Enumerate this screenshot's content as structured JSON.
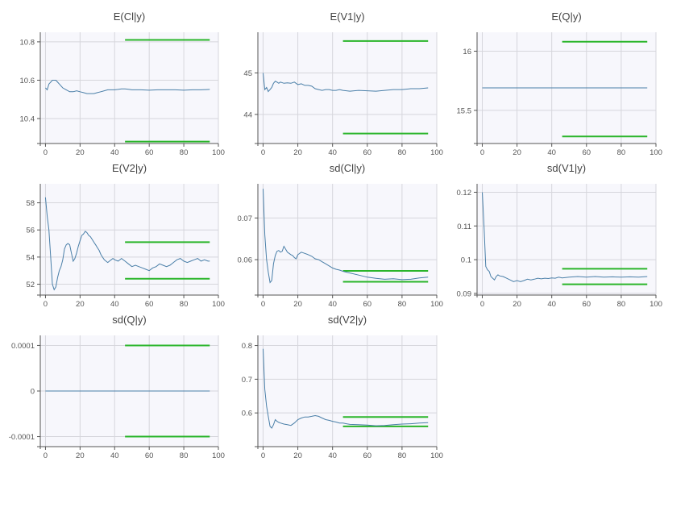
{
  "colors": {
    "trace": "#4a7fa8",
    "band": "#2ab52a",
    "plot_bg": "#f7f7fc",
    "grid": "#d6d6dc",
    "axis": "#555555"
  },
  "chart_data": [
    {
      "type": "line",
      "title": "E(Cl|y)",
      "xlim": [
        -3,
        100
      ],
      "ylim": [
        10.27,
        10.85
      ],
      "xticks": [
        0,
        20,
        40,
        60,
        80,
        100
      ],
      "xtick_labels": [
        "0",
        "20",
        "40",
        "60",
        "80",
        "100"
      ],
      "yticks": [
        10.4,
        10.6,
        10.8
      ],
      "ytick_labels": [
        "10.4",
        "10.6",
        "10.8"
      ],
      "bands": [
        {
          "x": [
            46,
            95
          ],
          "y": 10.81
        },
        {
          "x": [
            46,
            95
          ],
          "y": 10.28
        }
      ],
      "series": [
        {
          "x": [
            0,
            1,
            2,
            3,
            4,
            5,
            6,
            7,
            8,
            9,
            10,
            12,
            14,
            16,
            18,
            20,
            22,
            24,
            26,
            28,
            30,
            32,
            34,
            36,
            38,
            40,
            42,
            44,
            46,
            48,
            50,
            55,
            60,
            65,
            70,
            75,
            80,
            85,
            90,
            95
          ],
          "y": [
            10.56,
            10.55,
            10.58,
            10.59,
            10.6,
            10.6,
            10.6,
            10.59,
            10.58,
            10.57,
            10.56,
            10.55,
            10.54,
            10.54,
            10.545,
            10.54,
            10.535,
            10.53,
            10.53,
            10.53,
            10.535,
            10.54,
            10.545,
            10.55,
            10.55,
            10.55,
            10.552,
            10.555,
            10.555,
            10.553,
            10.55,
            10.55,
            10.548,
            10.55,
            10.55,
            10.55,
            10.548,
            10.55,
            10.55,
            10.552
          ]
        }
      ]
    },
    {
      "type": "line",
      "title": "E(V1|y)",
      "xlim": [
        -3,
        100
      ],
      "ylim": [
        43.3,
        45.98
      ],
      "xticks": [
        0,
        20,
        40,
        60,
        80,
        100
      ],
      "xtick_labels": [
        "0",
        "20",
        "40",
        "60",
        "80",
        "100"
      ],
      "yticks": [
        44,
        45
      ],
      "ytick_labels": [
        "44",
        "45"
      ],
      "bands": [
        {
          "x": [
            46,
            95
          ],
          "y": 45.77
        },
        {
          "x": [
            46,
            95
          ],
          "y": 43.54
        }
      ],
      "series": [
        {
          "x": [
            0,
            1,
            2,
            3,
            4,
            5,
            6,
            7,
            8,
            9,
            10,
            12,
            14,
            16,
            18,
            20,
            22,
            24,
            26,
            28,
            30,
            32,
            34,
            36,
            38,
            40,
            42,
            44,
            46,
            50,
            55,
            60,
            65,
            70,
            75,
            80,
            85,
            90,
            95
          ],
          "y": [
            45.0,
            44.6,
            44.65,
            44.55,
            44.6,
            44.65,
            44.75,
            44.8,
            44.78,
            44.75,
            44.78,
            44.75,
            44.76,
            44.75,
            44.78,
            44.72,
            44.74,
            44.7,
            44.7,
            44.68,
            44.62,
            44.6,
            44.58,
            44.6,
            44.6,
            44.58,
            44.58,
            44.6,
            44.58,
            44.56,
            44.58,
            44.57,
            44.56,
            44.58,
            44.6,
            44.6,
            44.62,
            44.62,
            44.64
          ]
        }
      ]
    },
    {
      "type": "line",
      "title": "E(Q|y)",
      "xlim": [
        -3,
        100
      ],
      "ylim": [
        15.22,
        16.16
      ],
      "xticks": [
        0,
        20,
        40,
        60,
        80,
        100
      ],
      "xtick_labels": [
        "0",
        "20",
        "40",
        "60",
        "80",
        "100"
      ],
      "yticks": [
        15.5,
        16
      ],
      "ytick_labels": [
        "15.5",
        "16"
      ],
      "bands": [
        {
          "x": [
            46,
            95
          ],
          "y": 16.08
        },
        {
          "x": [
            46,
            95
          ],
          "y": 15.28
        }
      ],
      "series": [
        {
          "x": [
            0,
            95
          ],
          "y": [
            15.69,
            15.69
          ]
        }
      ]
    },
    {
      "type": "line",
      "title": "E(V2|y)",
      "xlim": [
        -3,
        100
      ],
      "ylim": [
        51.2,
        59.4
      ],
      "xticks": [
        0,
        20,
        40,
        60,
        80,
        100
      ],
      "xtick_labels": [
        "0",
        "20",
        "40",
        "60",
        "80",
        "100"
      ],
      "yticks": [
        52,
        54,
        56,
        58
      ],
      "ytick_labels": [
        "52",
        "54",
        "56",
        "58"
      ],
      "bands": [
        {
          "x": [
            46,
            95
          ],
          "y": 55.1
        },
        {
          "x": [
            46,
            95
          ],
          "y": 52.4
        }
      ],
      "series": [
        {
          "x": [
            0,
            1,
            2,
            3,
            4,
            5,
            6,
            7,
            8,
            9,
            10,
            11,
            12,
            13,
            14,
            15,
            16,
            17,
            18,
            19,
            20,
            21,
            22,
            23,
            24,
            25,
            26,
            27,
            28,
            29,
            30,
            31,
            32,
            33,
            34,
            35,
            36,
            37,
            38,
            39,
            40,
            42,
            44,
            46,
            48,
            50,
            52,
            54,
            56,
            58,
            60,
            62,
            64,
            66,
            68,
            70,
            72,
            74,
            76,
            78,
            80,
            82,
            84,
            86,
            88,
            90,
            92,
            94,
            95
          ],
          "y": [
            58.4,
            57.0,
            56.0,
            54.0,
            52.0,
            51.6,
            51.8,
            52.5,
            53.0,
            53.3,
            53.8,
            54.6,
            54.9,
            55.0,
            54.9,
            54.3,
            53.7,
            53.9,
            54.3,
            54.8,
            55.2,
            55.6,
            55.7,
            55.9,
            55.8,
            55.6,
            55.5,
            55.3,
            55.1,
            54.9,
            54.7,
            54.5,
            54.2,
            54.0,
            53.8,
            53.7,
            53.6,
            53.7,
            53.8,
            53.9,
            53.8,
            53.7,
            53.9,
            53.7,
            53.5,
            53.3,
            53.4,
            53.3,
            53.2,
            53.1,
            53.0,
            53.2,
            53.3,
            53.5,
            53.4,
            53.3,
            53.4,
            53.6,
            53.8,
            53.9,
            53.7,
            53.6,
            53.7,
            53.8,
            53.9,
            53.7,
            53.8,
            53.7,
            53.7
          ]
        }
      ]
    },
    {
      "type": "line",
      "title": "sd(Cl|y)",
      "xlim": [
        -3,
        100
      ],
      "ylim": [
        0.0515,
        0.0782
      ],
      "xticks": [
        0,
        20,
        40,
        60,
        80,
        100
      ],
      "xtick_labels": [
        "0",
        "20",
        "40",
        "60",
        "80",
        "100"
      ],
      "yticks": [
        0.06,
        0.07
      ],
      "ytick_labels": [
        "0.06",
        "0.07"
      ],
      "bands": [
        {
          "x": [
            46,
            95
          ],
          "y": 0.0573
        },
        {
          "x": [
            46,
            95
          ],
          "y": 0.0547
        }
      ],
      "series": [
        {
          "x": [
            0,
            1,
            2,
            3,
            4,
            5,
            6,
            7,
            8,
            9,
            10,
            11,
            12,
            13,
            14,
            15,
            16,
            17,
            18,
            19,
            20,
            22,
            24,
            26,
            28,
            30,
            32,
            34,
            36,
            38,
            40,
            42,
            44,
            46,
            48,
            50,
            55,
            60,
            65,
            70,
            75,
            80,
            85,
            90,
            95
          ],
          "y": [
            0.077,
            0.066,
            0.06,
            0.057,
            0.0545,
            0.055,
            0.059,
            0.061,
            0.062,
            0.0622,
            0.0618,
            0.062,
            0.0632,
            0.0625,
            0.0618,
            0.0615,
            0.0612,
            0.061,
            0.0605,
            0.0602,
            0.0612,
            0.0618,
            0.0615,
            0.0612,
            0.0608,
            0.0602,
            0.06,
            0.0595,
            0.059,
            0.0585,
            0.058,
            0.0577,
            0.0575,
            0.0572,
            0.057,
            0.0568,
            0.0563,
            0.0558,
            0.0555,
            0.0553,
            0.0554,
            0.0552,
            0.0553,
            0.0556,
            0.0558
          ]
        }
      ]
    },
    {
      "type": "line",
      "title": "sd(V1|y)",
      "xlim": [
        -3,
        100
      ],
      "ylim": [
        0.0895,
        0.1225
      ],
      "xticks": [
        0,
        20,
        40,
        60,
        80,
        100
      ],
      "xtick_labels": [
        "0",
        "20",
        "40",
        "60",
        "80",
        "100"
      ],
      "yticks": [
        0.09,
        0.1,
        0.11,
        0.12
      ],
      "ytick_labels": [
        "0.09",
        "0.1",
        "0.11",
        "0.12"
      ],
      "bands": [
        {
          "x": [
            46,
            95
          ],
          "y": 0.0973
        },
        {
          "x": [
            46,
            95
          ],
          "y": 0.0927
        }
      ],
      "series": [
        {
          "x": [
            0,
            1,
            2,
            3,
            4,
            5,
            6,
            7,
            8,
            9,
            10,
            12,
            14,
            16,
            18,
            20,
            22,
            24,
            26,
            28,
            30,
            32,
            34,
            36,
            38,
            40,
            42,
            44,
            46,
            50,
            55,
            60,
            65,
            70,
            75,
            80,
            85,
            90,
            95
          ],
          "y": [
            0.12,
            0.11,
            0.098,
            0.097,
            0.0965,
            0.095,
            0.0945,
            0.094,
            0.095,
            0.0955,
            0.0952,
            0.095,
            0.0945,
            0.094,
            0.0935,
            0.0938,
            0.0935,
            0.0938,
            0.0942,
            0.094,
            0.0942,
            0.0945,
            0.0943,
            0.0945,
            0.0944,
            0.0946,
            0.0945,
            0.0948,
            0.0946,
            0.0948,
            0.095,
            0.0948,
            0.095,
            0.0948,
            0.0949,
            0.0948,
            0.0949,
            0.0948,
            0.095
          ]
        }
      ]
    },
    {
      "type": "line",
      "title": "sd(Q|y)",
      "xlim": [
        -3,
        100
      ],
      "ylim": [
        -0.000122,
        0.000122
      ],
      "xticks": [
        0,
        20,
        40,
        60,
        80,
        100
      ],
      "xtick_labels": [
        "0",
        "20",
        "40",
        "60",
        "80",
        "100"
      ],
      "yticks": [
        -0.0001,
        0,
        0.0001
      ],
      "ytick_labels": [
        "-0.0001",
        "0",
        "0.0001"
      ],
      "bands": [
        {
          "x": [
            46,
            95
          ],
          "y": 0.0001
        },
        {
          "x": [
            46,
            95
          ],
          "y": -0.0001
        }
      ],
      "series": [
        {
          "x": [
            0,
            95
          ],
          "y": [
            0,
            0
          ]
        }
      ]
    },
    {
      "type": "line",
      "title": "sd(V2|y)",
      "xlim": [
        -3,
        100
      ],
      "ylim": [
        0.5,
        0.83
      ],
      "xticks": [
        0,
        20,
        40,
        60,
        80,
        100
      ],
      "xtick_labels": [
        "0",
        "20",
        "40",
        "60",
        "80",
        "100"
      ],
      "yticks": [
        0.6,
        0.7,
        0.8
      ],
      "ytick_labels": [
        "0.6",
        "0.7",
        "0.8"
      ],
      "bands": [
        {
          "x": [
            46,
            95
          ],
          "y": 0.588
        },
        {
          "x": [
            46,
            95
          ],
          "y": 0.56
        }
      ],
      "series": [
        {
          "x": [
            0,
            1,
            2,
            3,
            4,
            5,
            6,
            7,
            8,
            9,
            10,
            12,
            14,
            16,
            18,
            20,
            22,
            24,
            26,
            28,
            30,
            32,
            34,
            36,
            38,
            40,
            42,
            44,
            46,
            48,
            50,
            55,
            60,
            65,
            70,
            75,
            80,
            85,
            90,
            95
          ],
          "y": [
            0.79,
            0.67,
            0.62,
            0.59,
            0.56,
            0.555,
            0.565,
            0.58,
            0.575,
            0.572,
            0.57,
            0.567,
            0.565,
            0.563,
            0.57,
            0.58,
            0.585,
            0.588,
            0.588,
            0.59,
            0.592,
            0.59,
            0.585,
            0.58,
            0.578,
            0.575,
            0.573,
            0.57,
            0.57,
            0.568,
            0.566,
            0.565,
            0.564,
            0.562,
            0.563,
            0.565,
            0.567,
            0.568,
            0.57,
            0.571
          ]
        }
      ]
    }
  ]
}
